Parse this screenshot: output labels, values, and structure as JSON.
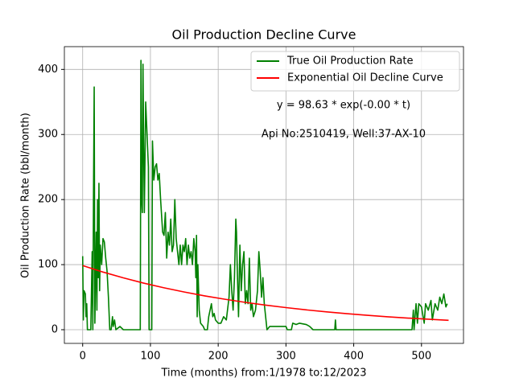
{
  "chart_data": {
    "type": "line",
    "title": "Oil Production Decline Curve",
    "xlabel": "Time (months) from:1/1978 to:12/2023",
    "ylabel": "Oil Production Rate (bbl/month)",
    "annotations": [
      "y = 98.63 * exp(-0.00 * t)",
      "Api No:2510419, Well:37-AX-10"
    ],
    "xlim": [
      -27,
      562
    ],
    "ylim": [
      -21,
      435
    ],
    "xticks": [
      0,
      100,
      200,
      300,
      400,
      500
    ],
    "yticks": [
      0,
      100,
      200,
      300,
      400
    ],
    "grid": true,
    "legend": "upper right",
    "series": [
      {
        "name": "True Oil Production Rate",
        "color": "#008000",
        "x": [
          0,
          1,
          2,
          4,
          5,
          6,
          7,
          12,
          14,
          15,
          16,
          17,
          18,
          20,
          21,
          22,
          23,
          24,
          25,
          26,
          28,
          30,
          32,
          34,
          36,
          38,
          40,
          42,
          44,
          45,
          47,
          49,
          55,
          60,
          85,
          86,
          87,
          88,
          89,
          90,
          91,
          93,
          95,
          97,
          98,
          102,
          103,
          105,
          107,
          109,
          111,
          113,
          115,
          118,
          120,
          122,
          124,
          126,
          128,
          130,
          132,
          134,
          136,
          138,
          140,
          142,
          144,
          146,
          148,
          150,
          152,
          154,
          156,
          158,
          160,
          162,
          164,
          166,
          167,
          168,
          169,
          170,
          172,
          174,
          178,
          180,
          184,
          186,
          188,
          190,
          192,
          194,
          196,
          200,
          204,
          208,
          212,
          216,
          218,
          220,
          222,
          224,
          226,
          227,
          228,
          230,
          232,
          234,
          236,
          238,
          240,
          242,
          244,
          246,
          248,
          250,
          252,
          255,
          258,
          260,
          262,
          264,
          266,
          268,
          270,
          272,
          276,
          290,
          300,
          302,
          308,
          310,
          315,
          320,
          330,
          335,
          340,
          372,
          373,
          374,
          486,
          488,
          489,
          492,
          494,
          496,
          500,
          504,
          506,
          510,
          514,
          516,
          520,
          524,
          527,
          530,
          533,
          536,
          538
        ],
        "values": [
          113,
          15,
          60,
          55,
          20,
          40,
          0,
          0,
          120,
          0,
          210,
          373,
          10,
          150,
          30,
          200,
          80,
          225,
          60,
          130,
          100,
          140,
          135,
          110,
          90,
          50,
          0,
          0,
          20,
          5,
          15,
          0,
          5,
          0,
          0,
          414,
          200,
          180,
          408,
          280,
          180,
          350,
          300,
          250,
          0,
          0,
          290,
          230,
          250,
          255,
          230,
          240,
          200,
          150,
          145,
          180,
          110,
          150,
          130,
          170,
          120,
          130,
          200,
          140,
          120,
          100,
          130,
          100,
          130,
          120,
          140,
          100,
          130,
          110,
          120,
          100,
          140,
          120,
          80,
          145,
          20,
          100,
          30,
          10,
          5,
          0,
          0,
          20,
          30,
          40,
          20,
          25,
          15,
          10,
          10,
          20,
          15,
          50,
          100,
          60,
          30,
          80,
          170,
          150,
          100,
          20,
          130,
          60,
          100,
          120,
          40,
          60,
          40,
          110,
          30,
          40,
          20,
          30,
          60,
          120,
          90,
          50,
          80,
          40,
          20,
          0,
          5,
          5,
          5,
          0,
          0,
          10,
          8,
          10,
          8,
          5,
          0,
          0,
          15,
          0,
          0,
          30,
          0,
          40,
          10,
          40,
          35,
          10,
          40,
          30,
          45,
          15,
          40,
          30,
          50,
          40,
          55,
          35,
          40
        ]
      },
      {
        "name": "Exponential Oil Decline Curve",
        "color": "#ff0000",
        "x": [
          0,
          30,
          60,
          90,
          120,
          150,
          180,
          210,
          240,
          270,
          300,
          330,
          360,
          390,
          420,
          450,
          480,
          510,
          540
        ],
        "values": [
          98.6,
          88.6,
          79.7,
          71.6,
          64.4,
          57.9,
          52.0,
          46.8,
          42.0,
          37.8,
          34.0,
          30.5,
          27.4,
          24.7,
          22.2,
          19.9,
          17.9,
          16.1,
          14.5
        ]
      }
    ]
  }
}
